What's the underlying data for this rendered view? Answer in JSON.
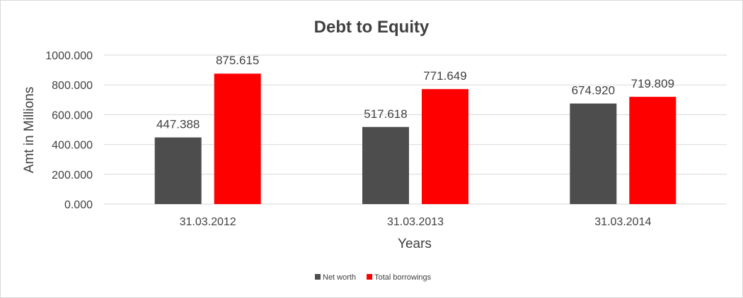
{
  "chart_data": {
    "type": "bar",
    "title": "Debt to Equity",
    "xlabel": "Years",
    "ylabel": "Amt in Millions",
    "categories": [
      "31.03.2012",
      "31.03.2013",
      "31.03.2014"
    ],
    "series": [
      {
        "name": "Net worth",
        "color": "#4d4d4d",
        "values": [
          447.388,
          517.618,
          674.92
        ],
        "labels": [
          "447.388",
          "517.618",
          "674.920"
        ]
      },
      {
        "name": "Total borrowings",
        "color": "#ff0000",
        "values": [
          875.615,
          771.649,
          719.809
        ],
        "labels": [
          "875.615",
          "771.649",
          "719.809"
        ]
      }
    ],
    "ylim": [
      0,
      1000
    ],
    "yticks": [
      0,
      200,
      400,
      600,
      800,
      1000
    ],
    "ytick_labels": [
      "0.000",
      "200.000",
      "400.000",
      "600.000",
      "800.000",
      "1000.000"
    ],
    "grid": true,
    "legend_position": "bottom"
  }
}
